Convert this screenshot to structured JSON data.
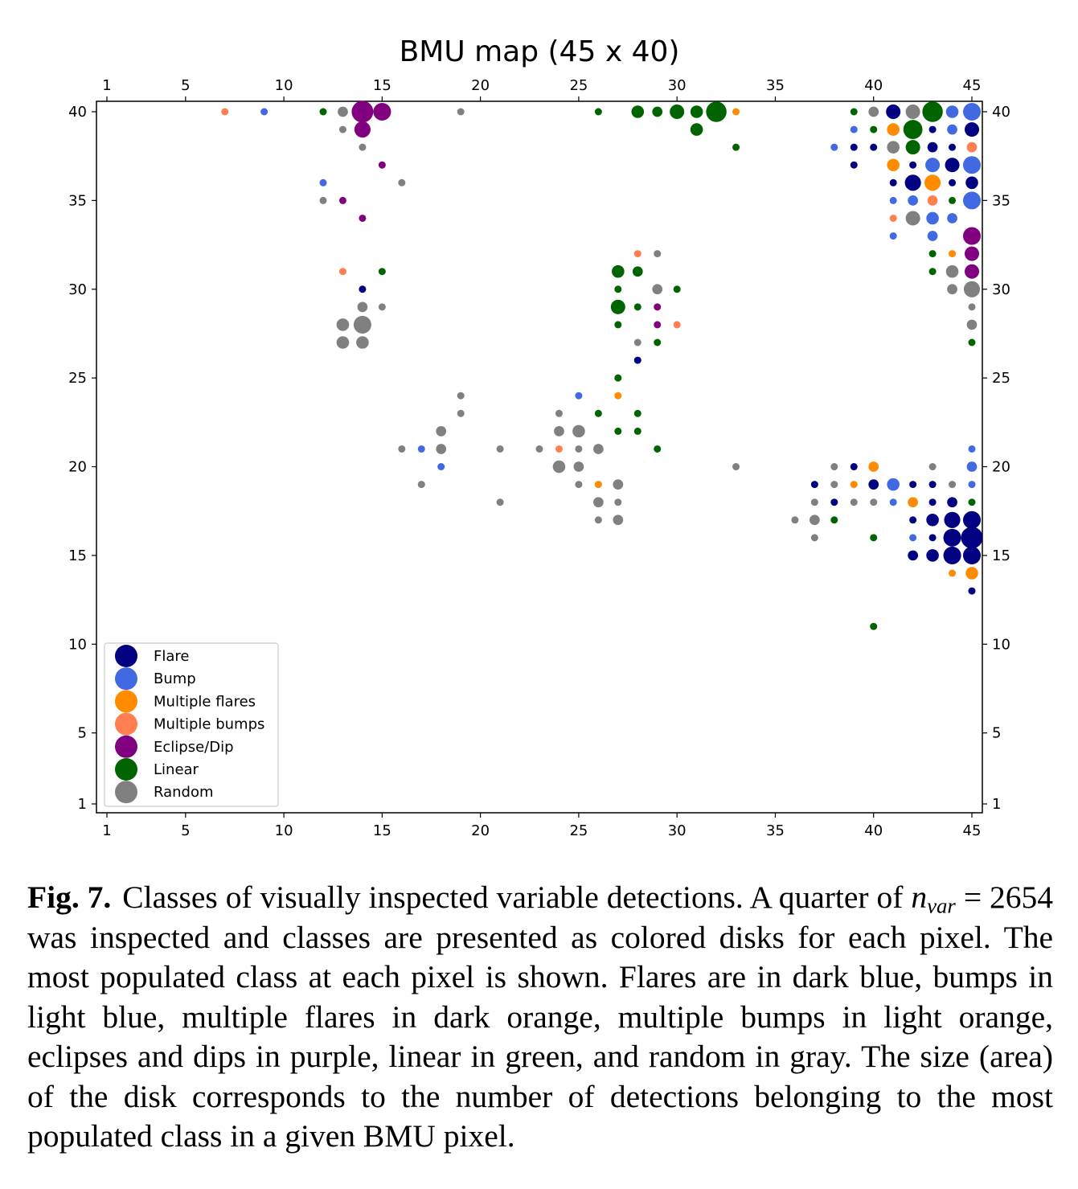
{
  "chart_data": {
    "type": "scatter",
    "title": "BMU map (45 x 40)",
    "xlim": [
      1,
      45
    ],
    "ylim": [
      1,
      40
    ],
    "x_ticks": [
      1,
      5,
      10,
      15,
      20,
      25,
      30,
      35,
      40,
      45
    ],
    "y_ticks": [
      1,
      5,
      10,
      15,
      20,
      25,
      30,
      35,
      40
    ],
    "grid": false,
    "legend_placement": "lower-left",
    "marker_size_meaning": "area proportional to number of detections of most populated class",
    "classes": [
      {
        "name": "Flare",
        "color": "#000080"
      },
      {
        "name": "Bump",
        "color": "#4169e1"
      },
      {
        "name": "Multiple flares",
        "color": "#ff8c00"
      },
      {
        "name": "Multiple bumps",
        "color": "#ff7f50"
      },
      {
        "name": "Eclipse/Dip",
        "color": "#800080"
      },
      {
        "name": "Linear",
        "color": "#006400"
      },
      {
        "name": "Random",
        "color": "#808080"
      }
    ],
    "points": [
      {
        "x": 7,
        "y": 40,
        "cls": 3,
        "n": 1
      },
      {
        "x": 9,
        "y": 40,
        "cls": 1,
        "n": 1
      },
      {
        "x": 12,
        "y": 40,
        "cls": 5,
        "n": 1
      },
      {
        "x": 13,
        "y": 40,
        "cls": 6,
        "n": 2
      },
      {
        "x": 14,
        "y": 40,
        "cls": 4,
        "n": 9
      },
      {
        "x": 15,
        "y": 40,
        "cls": 4,
        "n": 6
      },
      {
        "x": 19,
        "y": 40,
        "cls": 6,
        "n": 1
      },
      {
        "x": 26,
        "y": 40,
        "cls": 5,
        "n": 1
      },
      {
        "x": 28,
        "y": 40,
        "cls": 5,
        "n": 3
      },
      {
        "x": 29,
        "y": 40,
        "cls": 5,
        "n": 2
      },
      {
        "x": 30,
        "y": 40,
        "cls": 5,
        "n": 4
      },
      {
        "x": 31,
        "y": 40,
        "cls": 5,
        "n": 3
      },
      {
        "x": 32,
        "y": 40,
        "cls": 5,
        "n": 8
      },
      {
        "x": 33,
        "y": 40,
        "cls": 2,
        "n": 1
      },
      {
        "x": 13,
        "y": 39,
        "cls": 6,
        "n": 1
      },
      {
        "x": 14,
        "y": 39,
        "cls": 4,
        "n": 5
      },
      {
        "x": 31,
        "y": 39,
        "cls": 5,
        "n": 3
      },
      {
        "x": 14,
        "y": 38,
        "cls": 6,
        "n": 1
      },
      {
        "x": 33,
        "y": 38,
        "cls": 5,
        "n": 1
      },
      {
        "x": 15,
        "y": 37,
        "cls": 4,
        "n": 1
      },
      {
        "x": 12,
        "y": 36,
        "cls": 1,
        "n": 1
      },
      {
        "x": 16,
        "y": 36,
        "cls": 6,
        "n": 1
      },
      {
        "x": 12,
        "y": 35,
        "cls": 6,
        "n": 1
      },
      {
        "x": 13,
        "y": 35,
        "cls": 4,
        "n": 1
      },
      {
        "x": 14,
        "y": 34,
        "cls": 4,
        "n": 1
      },
      {
        "x": 13,
        "y": 31,
        "cls": 3,
        "n": 1
      },
      {
        "x": 15,
        "y": 31,
        "cls": 5,
        "n": 1
      },
      {
        "x": 14,
        "y": 30,
        "cls": 0,
        "n": 1
      },
      {
        "x": 14,
        "y": 29,
        "cls": 6,
        "n": 2
      },
      {
        "x": 15,
        "y": 29,
        "cls": 6,
        "n": 1
      },
      {
        "x": 13,
        "y": 28,
        "cls": 6,
        "n": 3
      },
      {
        "x": 14,
        "y": 28,
        "cls": 6,
        "n": 6
      },
      {
        "x": 13,
        "y": 27,
        "cls": 6,
        "n": 3
      },
      {
        "x": 14,
        "y": 27,
        "cls": 6,
        "n": 3
      },
      {
        "x": 28,
        "y": 32,
        "cls": 3,
        "n": 1
      },
      {
        "x": 29,
        "y": 32,
        "cls": 6,
        "n": 1
      },
      {
        "x": 27,
        "y": 31,
        "cls": 5,
        "n": 3
      },
      {
        "x": 28,
        "y": 31,
        "cls": 5,
        "n": 2
      },
      {
        "x": 27,
        "y": 30,
        "cls": 5,
        "n": 1
      },
      {
        "x": 29,
        "y": 30,
        "cls": 6,
        "n": 2
      },
      {
        "x": 30,
        "y": 30,
        "cls": 5,
        "n": 1
      },
      {
        "x": 27,
        "y": 29,
        "cls": 5,
        "n": 4
      },
      {
        "x": 28,
        "y": 29,
        "cls": 5,
        "n": 1
      },
      {
        "x": 29,
        "y": 29,
        "cls": 4,
        "n": 1
      },
      {
        "x": 27,
        "y": 28,
        "cls": 5,
        "n": 1
      },
      {
        "x": 29,
        "y": 28,
        "cls": 4,
        "n": 1
      },
      {
        "x": 30,
        "y": 28,
        "cls": 3,
        "n": 1
      },
      {
        "x": 28,
        "y": 27,
        "cls": 6,
        "n": 1
      },
      {
        "x": 29,
        "y": 27,
        "cls": 5,
        "n": 1
      },
      {
        "x": 28,
        "y": 26,
        "cls": 0,
        "n": 1
      },
      {
        "x": 27,
        "y": 25,
        "cls": 5,
        "n": 1
      },
      {
        "x": 19,
        "y": 24,
        "cls": 6,
        "n": 1
      },
      {
        "x": 25,
        "y": 24,
        "cls": 1,
        "n": 1
      },
      {
        "x": 27,
        "y": 24,
        "cls": 2,
        "n": 1
      },
      {
        "x": 19,
        "y": 23,
        "cls": 6,
        "n": 1
      },
      {
        "x": 24,
        "y": 23,
        "cls": 6,
        "n": 1
      },
      {
        "x": 26,
        "y": 23,
        "cls": 5,
        "n": 1
      },
      {
        "x": 28,
        "y": 23,
        "cls": 5,
        "n": 1
      },
      {
        "x": 18,
        "y": 22,
        "cls": 6,
        "n": 2
      },
      {
        "x": 24,
        "y": 22,
        "cls": 6,
        "n": 2
      },
      {
        "x": 25,
        "y": 22,
        "cls": 6,
        "n": 3
      },
      {
        "x": 27,
        "y": 22,
        "cls": 5,
        "n": 1
      },
      {
        "x": 28,
        "y": 22,
        "cls": 5,
        "n": 1
      },
      {
        "x": 16,
        "y": 21,
        "cls": 6,
        "n": 1
      },
      {
        "x": 17,
        "y": 21,
        "cls": 1,
        "n": 1
      },
      {
        "x": 18,
        "y": 21,
        "cls": 6,
        "n": 2
      },
      {
        "x": 21,
        "y": 21,
        "cls": 6,
        "n": 1
      },
      {
        "x": 23,
        "y": 21,
        "cls": 6,
        "n": 1
      },
      {
        "x": 24,
        "y": 21,
        "cls": 3,
        "n": 1
      },
      {
        "x": 25,
        "y": 21,
        "cls": 6,
        "n": 1
      },
      {
        "x": 26,
        "y": 21,
        "cls": 6,
        "n": 2
      },
      {
        "x": 29,
        "y": 21,
        "cls": 5,
        "n": 1
      },
      {
        "x": 18,
        "y": 20,
        "cls": 1,
        "n": 1
      },
      {
        "x": 24,
        "y": 20,
        "cls": 6,
        "n": 3
      },
      {
        "x": 25,
        "y": 20,
        "cls": 6,
        "n": 2
      },
      {
        "x": 33,
        "y": 20,
        "cls": 6,
        "n": 1
      },
      {
        "x": 17,
        "y": 19,
        "cls": 6,
        "n": 1
      },
      {
        "x": 25,
        "y": 19,
        "cls": 6,
        "n": 1
      },
      {
        "x": 26,
        "y": 19,
        "cls": 2,
        "n": 1
      },
      {
        "x": 27,
        "y": 19,
        "cls": 6,
        "n": 2
      },
      {
        "x": 21,
        "y": 18,
        "cls": 6,
        "n": 1
      },
      {
        "x": 26,
        "y": 18,
        "cls": 6,
        "n": 2
      },
      {
        "x": 27,
        "y": 18,
        "cls": 6,
        "n": 1
      },
      {
        "x": 26,
        "y": 17,
        "cls": 6,
        "n": 1
      },
      {
        "x": 27,
        "y": 17,
        "cls": 6,
        "n": 2
      },
      {
        "x": 39,
        "y": 40,
        "cls": 5,
        "n": 1
      },
      {
        "x": 40,
        "y": 40,
        "cls": 6,
        "n": 2
      },
      {
        "x": 41,
        "y": 40,
        "cls": 0,
        "n": 4
      },
      {
        "x": 42,
        "y": 40,
        "cls": 6,
        "n": 4
      },
      {
        "x": 43,
        "y": 40,
        "cls": 5,
        "n": 8
      },
      {
        "x": 44,
        "y": 40,
        "cls": 1,
        "n": 3
      },
      {
        "x": 45,
        "y": 40,
        "cls": 1,
        "n": 6
      },
      {
        "x": 39,
        "y": 39,
        "cls": 1,
        "n": 1
      },
      {
        "x": 40,
        "y": 39,
        "cls": 5,
        "n": 1
      },
      {
        "x": 41,
        "y": 39,
        "cls": 2,
        "n": 3
      },
      {
        "x": 42,
        "y": 39,
        "cls": 5,
        "n": 7
      },
      {
        "x": 43,
        "y": 39,
        "cls": 0,
        "n": 1
      },
      {
        "x": 44,
        "y": 39,
        "cls": 1,
        "n": 2
      },
      {
        "x": 45,
        "y": 39,
        "cls": 0,
        "n": 4
      },
      {
        "x": 38,
        "y": 38,
        "cls": 1,
        "n": 1
      },
      {
        "x": 39,
        "y": 38,
        "cls": 0,
        "n": 1
      },
      {
        "x": 40,
        "y": 38,
        "cls": 0,
        "n": 1
      },
      {
        "x": 41,
        "y": 38,
        "cls": 6,
        "n": 3
      },
      {
        "x": 42,
        "y": 38,
        "cls": 5,
        "n": 4
      },
      {
        "x": 43,
        "y": 38,
        "cls": 0,
        "n": 2
      },
      {
        "x": 44,
        "y": 38,
        "cls": 0,
        "n": 1
      },
      {
        "x": 45,
        "y": 38,
        "cls": 3,
        "n": 2
      },
      {
        "x": 39,
        "y": 37,
        "cls": 0,
        "n": 1
      },
      {
        "x": 41,
        "y": 37,
        "cls": 2,
        "n": 3
      },
      {
        "x": 42,
        "y": 37,
        "cls": 0,
        "n": 1
      },
      {
        "x": 43,
        "y": 37,
        "cls": 1,
        "n": 4
      },
      {
        "x": 44,
        "y": 37,
        "cls": 0,
        "n": 4
      },
      {
        "x": 45,
        "y": 37,
        "cls": 1,
        "n": 6
      },
      {
        "x": 41,
        "y": 36,
        "cls": 0,
        "n": 1
      },
      {
        "x": 42,
        "y": 36,
        "cls": 0,
        "n": 5
      },
      {
        "x": 43,
        "y": 36,
        "cls": 2,
        "n": 5
      },
      {
        "x": 44,
        "y": 36,
        "cls": 0,
        "n": 1
      },
      {
        "x": 45,
        "y": 36,
        "cls": 0,
        "n": 3
      },
      {
        "x": 41,
        "y": 35,
        "cls": 1,
        "n": 1
      },
      {
        "x": 42,
        "y": 35,
        "cls": 1,
        "n": 2
      },
      {
        "x": 43,
        "y": 35,
        "cls": 3,
        "n": 2
      },
      {
        "x": 44,
        "y": 35,
        "cls": 5,
        "n": 1
      },
      {
        "x": 45,
        "y": 35,
        "cls": 1,
        "n": 6
      },
      {
        "x": 41,
        "y": 34,
        "cls": 3,
        "n": 1
      },
      {
        "x": 42,
        "y": 34,
        "cls": 6,
        "n": 4
      },
      {
        "x": 43,
        "y": 34,
        "cls": 1,
        "n": 3
      },
      {
        "x": 44,
        "y": 34,
        "cls": 1,
        "n": 2
      },
      {
        "x": 41,
        "y": 33,
        "cls": 1,
        "n": 1
      },
      {
        "x": 43,
        "y": 33,
        "cls": 1,
        "n": 2
      },
      {
        "x": 45,
        "y": 33,
        "cls": 4,
        "n": 6
      },
      {
        "x": 43,
        "y": 32,
        "cls": 5,
        "n": 1
      },
      {
        "x": 44,
        "y": 32,
        "cls": 2,
        "n": 1
      },
      {
        "x": 45,
        "y": 32,
        "cls": 4,
        "n": 4
      },
      {
        "x": 43,
        "y": 31,
        "cls": 5,
        "n": 1
      },
      {
        "x": 44,
        "y": 31,
        "cls": 6,
        "n": 3
      },
      {
        "x": 45,
        "y": 31,
        "cls": 4,
        "n": 4
      },
      {
        "x": 44,
        "y": 30,
        "cls": 6,
        "n": 2
      },
      {
        "x": 45,
        "y": 30,
        "cls": 6,
        "n": 5
      },
      {
        "x": 45,
        "y": 29,
        "cls": 6,
        "n": 1
      },
      {
        "x": 45,
        "y": 28,
        "cls": 6,
        "n": 2
      },
      {
        "x": 45,
        "y": 27,
        "cls": 5,
        "n": 1
      },
      {
        "x": 45,
        "y": 21,
        "cls": 1,
        "n": 1
      },
      {
        "x": 38,
        "y": 20,
        "cls": 6,
        "n": 1
      },
      {
        "x": 39,
        "y": 20,
        "cls": 0,
        "n": 1
      },
      {
        "x": 40,
        "y": 20,
        "cls": 2,
        "n": 2
      },
      {
        "x": 43,
        "y": 20,
        "cls": 6,
        "n": 1
      },
      {
        "x": 45,
        "y": 20,
        "cls": 1,
        "n": 2
      },
      {
        "x": 37,
        "y": 19,
        "cls": 0,
        "n": 1
      },
      {
        "x": 38,
        "y": 19,
        "cls": 6,
        "n": 1
      },
      {
        "x": 39,
        "y": 19,
        "cls": 2,
        "n": 1
      },
      {
        "x": 40,
        "y": 19,
        "cls": 0,
        "n": 2
      },
      {
        "x": 41,
        "y": 19,
        "cls": 1,
        "n": 3
      },
      {
        "x": 42,
        "y": 19,
        "cls": 0,
        "n": 1
      },
      {
        "x": 43,
        "y": 19,
        "cls": 0,
        "n": 1
      },
      {
        "x": 44,
        "y": 19,
        "cls": 6,
        "n": 1
      },
      {
        "x": 45,
        "y": 19,
        "cls": 1,
        "n": 1
      },
      {
        "x": 37,
        "y": 18,
        "cls": 6,
        "n": 1
      },
      {
        "x": 38,
        "y": 18,
        "cls": 0,
        "n": 1
      },
      {
        "x": 39,
        "y": 18,
        "cls": 6,
        "n": 1
      },
      {
        "x": 40,
        "y": 18,
        "cls": 6,
        "n": 1
      },
      {
        "x": 41,
        "y": 18,
        "cls": 1,
        "n": 1
      },
      {
        "x": 42,
        "y": 18,
        "cls": 2,
        "n": 2
      },
      {
        "x": 43,
        "y": 18,
        "cls": 0,
        "n": 1
      },
      {
        "x": 44,
        "y": 18,
        "cls": 0,
        "n": 2
      },
      {
        "x": 45,
        "y": 18,
        "cls": 5,
        "n": 1
      },
      {
        "x": 36,
        "y": 17,
        "cls": 6,
        "n": 1
      },
      {
        "x": 37,
        "y": 17,
        "cls": 6,
        "n": 2
      },
      {
        "x": 38,
        "y": 17,
        "cls": 5,
        "n": 1
      },
      {
        "x": 42,
        "y": 17,
        "cls": 0,
        "n": 1
      },
      {
        "x": 43,
        "y": 17,
        "cls": 0,
        "n": 3
      },
      {
        "x": 44,
        "y": 17,
        "cls": 0,
        "n": 5
      },
      {
        "x": 45,
        "y": 17,
        "cls": 0,
        "n": 6
      },
      {
        "x": 37,
        "y": 16,
        "cls": 6,
        "n": 1
      },
      {
        "x": 40,
        "y": 16,
        "cls": 5,
        "n": 1
      },
      {
        "x": 42,
        "y": 16,
        "cls": 1,
        "n": 1
      },
      {
        "x": 43,
        "y": 16,
        "cls": 0,
        "n": 1
      },
      {
        "x": 44,
        "y": 16,
        "cls": 0,
        "n": 6
      },
      {
        "x": 45,
        "y": 16,
        "cls": 0,
        "n": 9
      },
      {
        "x": 42,
        "y": 15,
        "cls": 0,
        "n": 2
      },
      {
        "x": 43,
        "y": 15,
        "cls": 0,
        "n": 3
      },
      {
        "x": 44,
        "y": 15,
        "cls": 0,
        "n": 6
      },
      {
        "x": 45,
        "y": 15,
        "cls": 0,
        "n": 6
      },
      {
        "x": 44,
        "y": 14,
        "cls": 2,
        "n": 1
      },
      {
        "x": 45,
        "y": 14,
        "cls": 2,
        "n": 3
      },
      {
        "x": 45,
        "y": 13,
        "cls": 0,
        "n": 1
      },
      {
        "x": 40,
        "y": 11,
        "cls": 5,
        "n": 1
      }
    ]
  },
  "caption": {
    "label": "Fig. 7.",
    "text_before": "Classes of visually inspected variable detections. A quarter of",
    "math_base": "n",
    "math_sub": "var",
    "text_after": "= 2654 was inspected and classes are presented as colored disks for each pixel. The most populated class at each pixel is shown. Flares are in dark blue, bumps in light blue, multiple flares in dark orange, multiple bumps in light orange, eclipses and dips in purple, linear in green, and random in gray. The size (area) of the disk corresponds to the number of detections belonging to the most populated class in a given BMU pixel."
  }
}
